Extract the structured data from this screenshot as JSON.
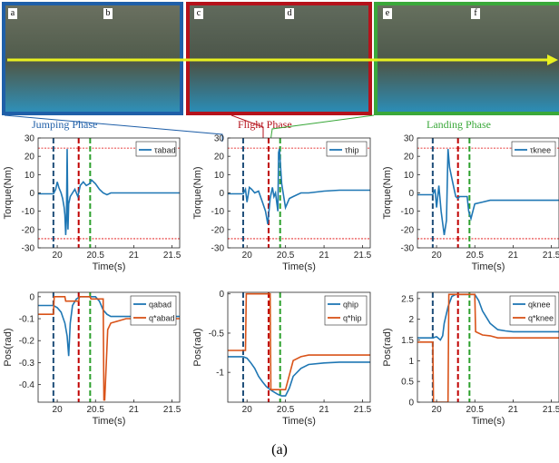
{
  "caption": "(a)",
  "photo_strip": {
    "panel_labels": [
      "a",
      "b",
      "c",
      "d",
      "e",
      "f"
    ],
    "frame_colors": [
      "#1f5fa8",
      "#b5121b",
      "#3aa83a"
    ],
    "arrow_color": "#e8f020",
    "background_color": "#5b6b5c"
  },
  "phases": [
    {
      "label": "Jumping Phase",
      "color": "#1f5fa8"
    },
    {
      "label": "Flight Phase",
      "color": "#b5121b"
    },
    {
      "label": "Landing Phase",
      "color": "#3aa83a"
    }
  ],
  "colors": {
    "series_blue": "#1f77b4",
    "series_orange": "#d95319",
    "jump_line": "#1f4e79",
    "flight_line": "#c00000",
    "land_line": "#2ca02c",
    "limit_line": "#e00000"
  },
  "chart_data": [
    {
      "type": "line",
      "id": "torque-abad",
      "xlabel": "Time(s)",
      "ylabel": "Torque(Nm)",
      "xlim": [
        19.75,
        21.6
      ],
      "ylim": [
        -30,
        30
      ],
      "xticks": [
        20,
        20.5,
        21,
        21.5
      ],
      "yticks": [
        -30,
        -20,
        -10,
        0,
        10,
        20,
        30
      ],
      "grid": false,
      "legend": "top-right",
      "hlines": [
        24.5,
        -25
      ],
      "vlines": [
        19.95,
        20.28,
        20.43
      ],
      "series": [
        {
          "name": "τabad",
          "color": "blue",
          "x": [
            19.75,
            19.95,
            19.98,
            20.0,
            20.02,
            20.05,
            20.07,
            20.09,
            20.1,
            20.11,
            20.12,
            20.13,
            20.14,
            20.15,
            20.17,
            20.2,
            20.23,
            20.27,
            20.3,
            20.34,
            20.38,
            20.42,
            20.45,
            20.5,
            20.55,
            20.6,
            20.65,
            20.7,
            20.8,
            21.0,
            21.2,
            21.4,
            21.6
          ],
          "y": [
            -0.5,
            -0.5,
            2,
            6,
            3,
            0,
            -3,
            -8,
            -12,
            -23,
            -15,
            24,
            -20,
            -6,
            -2,
            0,
            2,
            -2,
            4,
            6,
            4,
            5,
            7,
            5,
            2,
            0,
            -1,
            0,
            0,
            0,
            0,
            0,
            0
          ]
        }
      ]
    },
    {
      "type": "line",
      "id": "torque-hip",
      "xlabel": "Time(s)",
      "ylabel": "Torque(Nm)",
      "xlim": [
        19.75,
        21.6
      ],
      "ylim": [
        -30,
        30
      ],
      "xticks": [
        20,
        20.5,
        21,
        21.5
      ],
      "yticks": [
        -30,
        -20,
        -10,
        0,
        10,
        20,
        30
      ],
      "grid": false,
      "legend": "top-right",
      "hlines": [
        24.5,
        -25
      ],
      "vlines": [
        19.95,
        20.28,
        20.43
      ],
      "series": [
        {
          "name": "τhip",
          "color": "blue",
          "x": [
            19.75,
            19.95,
            19.98,
            20.0,
            20.03,
            20.06,
            20.1,
            20.15,
            20.2,
            20.24,
            20.27,
            20.28,
            20.3,
            20.33,
            20.35,
            20.37,
            20.4,
            20.41,
            20.42,
            20.45,
            20.5,
            20.55,
            20.6,
            20.7,
            20.8,
            21.0,
            21.2,
            21.4,
            21.6
          ],
          "y": [
            -0.5,
            -0.5,
            2,
            -5,
            3,
            2,
            0,
            1,
            -5,
            -10,
            -17,
            -12,
            -3,
            3,
            -2,
            0,
            -10,
            22,
            24,
            5,
            -8,
            -3,
            -2,
            0,
            0,
            1,
            1.5,
            1.5,
            1.5
          ]
        }
      ]
    },
    {
      "type": "line",
      "id": "torque-knee",
      "xlabel": "Time(s)",
      "ylabel": "Torque(Nm)",
      "xlim": [
        19.75,
        21.6
      ],
      "ylim": [
        -30,
        30
      ],
      "xticks": [
        20,
        20.5,
        21,
        21.5
      ],
      "yticks": [
        -30,
        -20,
        -10,
        0,
        10,
        20,
        30
      ],
      "grid": false,
      "legend": "top-right",
      "hlines": [
        24.5,
        -25
      ],
      "vlines": [
        19.95,
        20.28,
        20.43
      ],
      "series": [
        {
          "name": "τknee",
          "color": "blue",
          "x": [
            19.75,
            19.95,
            19.98,
            20.0,
            20.03,
            20.06,
            20.1,
            20.13,
            20.15,
            20.17,
            20.2,
            20.22,
            20.25,
            20.28,
            20.3,
            20.35,
            20.4,
            20.42,
            20.45,
            20.5,
            20.6,
            20.7,
            20.8,
            21.0,
            21.2,
            21.4,
            21.6
          ],
          "y": [
            -1,
            -1,
            2,
            -8,
            4,
            -10,
            -23,
            -15,
            24,
            14,
            8,
            4,
            -2,
            -3,
            -2,
            -2,
            -2,
            -10,
            -14,
            -6,
            -5,
            -4,
            -4,
            -4,
            -4,
            -4,
            -4
          ]
        }
      ]
    },
    {
      "type": "line",
      "id": "pos-abad",
      "xlabel": "Time(s)",
      "ylabel": "Pos(rad)",
      "xlim": [
        19.75,
        21.6
      ],
      "ylim": [
        -0.48,
        0.02
      ],
      "xticks": [
        20,
        20.5,
        21,
        21.5
      ],
      "yticks": [
        -0.4,
        -0.3,
        -0.2,
        -0.1,
        0
      ],
      "grid": false,
      "legend": "top-right",
      "vlines": [
        19.95,
        20.28,
        20.43
      ],
      "series": [
        {
          "name": "qabad",
          "color": "blue",
          "x": [
            19.75,
            19.95,
            20.0,
            20.05,
            20.1,
            20.13,
            20.15,
            20.17,
            20.2,
            20.25,
            20.3,
            20.35,
            20.4,
            20.45,
            20.5,
            20.55,
            20.6,
            20.65,
            20.7,
            20.8,
            20.9,
            21.0,
            21.2,
            21.4,
            21.6
          ],
          "y": [
            -0.04,
            -0.04,
            -0.05,
            -0.07,
            -0.12,
            -0.18,
            -0.27,
            -0.12,
            -0.04,
            -0.01,
            0,
            0,
            0,
            0,
            0,
            -0.02,
            -0.06,
            -0.08,
            -0.09,
            -0.09,
            -0.09,
            -0.09,
            -0.09,
            -0.09,
            -0.09
          ]
        },
        {
          "name": "q*abad",
          "color": "orange",
          "x": [
            19.75,
            19.95,
            19.96,
            20.1,
            20.11,
            20.28,
            20.29,
            20.43,
            20.44,
            20.6,
            20.61,
            20.62,
            20.66,
            20.7,
            20.8,
            20.9,
            21.0,
            21.2,
            21.4,
            21.6
          ],
          "y": [
            -0.08,
            -0.08,
            0,
            0,
            -0.02,
            -0.02,
            0,
            0,
            -0.01,
            -0.01,
            -0.47,
            -0.47,
            -0.15,
            -0.12,
            -0.11,
            -0.1,
            -0.1,
            -0.1,
            -0.1,
            -0.1
          ]
        }
      ]
    },
    {
      "type": "line",
      "id": "pos-hip",
      "xlabel": "Time(s)",
      "ylabel": "Pos(rad)",
      "xlim": [
        19.75,
        21.6
      ],
      "ylim": [
        -1.38,
        0.02
      ],
      "xticks": [
        20,
        20.5,
        21,
        21.5
      ],
      "yticks": [
        -1,
        -0.5,
        0
      ],
      "grid": false,
      "legend": "top-right",
      "vlines": [
        19.95,
        20.28,
        20.43
      ],
      "series": [
        {
          "name": "qhip",
          "color": "blue",
          "x": [
            19.75,
            19.95,
            20.0,
            20.05,
            20.1,
            20.15,
            20.2,
            20.25,
            20.3,
            20.35,
            20.4,
            20.45,
            20.5,
            20.55,
            20.6,
            20.7,
            20.8,
            21.0,
            21.2,
            21.4,
            21.6
          ],
          "y": [
            -0.8,
            -0.8,
            -0.82,
            -0.88,
            -0.95,
            -1.05,
            -1.12,
            -1.18,
            -1.22,
            -1.25,
            -1.28,
            -1.3,
            -1.3,
            -1.2,
            -1.05,
            -0.95,
            -0.9,
            -0.88,
            -0.87,
            -0.87,
            -0.87
          ]
        },
        {
          "name": "q*hip",
          "color": "orange",
          "x": [
            19.75,
            19.98,
            19.99,
            20.05,
            20.3,
            20.31,
            20.5,
            20.6,
            20.7,
            20.8,
            21.0,
            21.2,
            21.4,
            21.6
          ],
          "y": [
            -0.72,
            -0.72,
            0,
            0,
            0,
            -1.22,
            -1.22,
            -0.85,
            -0.8,
            -0.78,
            -0.78,
            -0.78,
            -0.78,
            -0.78
          ]
        }
      ]
    },
    {
      "type": "line",
      "id": "pos-knee",
      "xlabel": "Time(s)",
      "ylabel": "Pos(rad)",
      "xlim": [
        19.75,
        21.6
      ],
      "ylim": [
        0,
        2.65
      ],
      "xticks": [
        20,
        20.5,
        21,
        21.5
      ],
      "yticks": [
        0,
        0.5,
        1,
        1.5,
        2,
        2.5
      ],
      "grid": false,
      "legend": "top-right",
      "vlines": [
        19.95,
        20.28,
        20.43
      ],
      "series": [
        {
          "name": "qknee",
          "color": "blue",
          "x": [
            19.75,
            19.95,
            20.0,
            20.05,
            20.08,
            20.1,
            20.15,
            20.2,
            20.25,
            20.3,
            20.35,
            20.4,
            20.5,
            20.55,
            20.6,
            20.7,
            20.8,
            20.9,
            21.0,
            21.2,
            21.4,
            21.6
          ],
          "y": [
            1.55,
            1.55,
            1.58,
            1.5,
            1.6,
            1.9,
            2.3,
            2.55,
            2.6,
            2.6,
            2.6,
            2.6,
            2.6,
            2.45,
            2.2,
            1.9,
            1.75,
            1.72,
            1.7,
            1.7,
            1.7,
            1.7
          ]
        },
        {
          "name": "q*knee",
          "color": "orange",
          "x": [
            19.75,
            19.95,
            19.96,
            20.15,
            20.16,
            20.25,
            20.3,
            20.5,
            20.51,
            20.6,
            20.7,
            20.8,
            21.0,
            21.2,
            21.4,
            21.6
          ],
          "y": [
            1.45,
            1.45,
            0,
            0,
            2.6,
            2.6,
            2.6,
            2.6,
            1.7,
            1.62,
            1.6,
            1.55,
            1.55,
            1.55,
            1.55,
            1.55
          ]
        }
      ]
    }
  ]
}
